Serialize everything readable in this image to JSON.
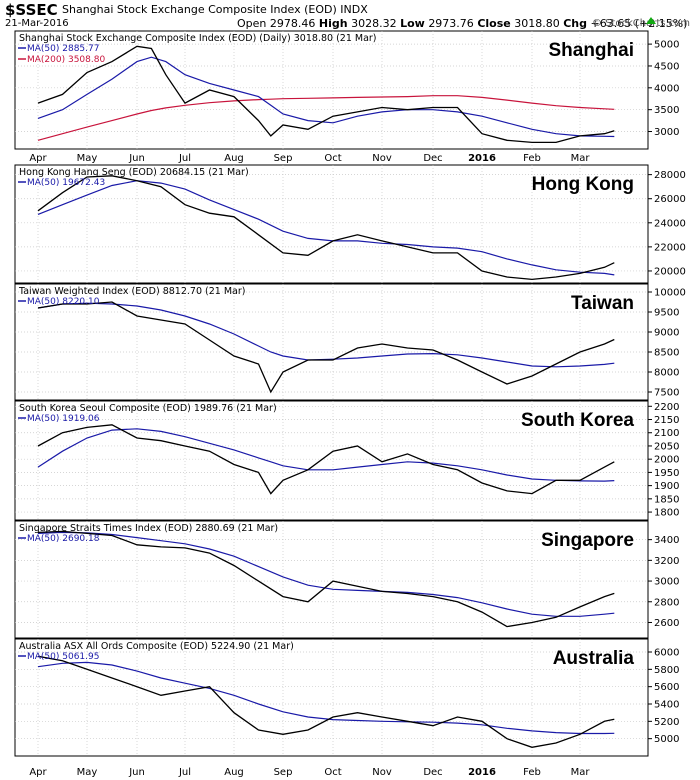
{
  "header": {
    "ticker": "$SSEC",
    "name": "Shanghai Stock Exchange Composite Index (EOD)",
    "exchange": "INDX",
    "date": "21-Mar-2016",
    "open_label": "Open",
    "open": "2978.46",
    "high_label": "High",
    "high": "3028.32",
    "low_label": "Low",
    "low": "2973.76",
    "close_label": "Close",
    "close": "3018.80",
    "chg_label": "Chg",
    "chg": "+63.65 (+2.15%)",
    "brand": "© StockCharts.com"
  },
  "x_axis": {
    "months": [
      "Apr",
      "May",
      "Jun",
      "Jul",
      "Aug",
      "Sep",
      "Oct",
      "Nov",
      "Dec",
      "2016",
      "Feb",
      "Mar"
    ],
    "bold_label": "2016"
  },
  "colors": {
    "price": "#000000",
    "ma50": "#1a1aa8",
    "ma200": "#c8143c",
    "grid": "#c8c8c8",
    "up": "#11aa11"
  },
  "chart_data": [
    {
      "type": "line",
      "title": "Shanghai Stock Exchange Composite Index (EOD) (Daily) 3018.80 (21 Mar)",
      "label": "Shanghai",
      "ylim": [
        2600,
        5300
      ],
      "yticks": [
        3000,
        3500,
        4000,
        4500,
        5000
      ],
      "legend": [
        {
          "name": "MA(50)",
          "value": "2885.77",
          "color": "#1a1aa8"
        },
        {
          "name": "MA(200)",
          "value": "3508.80",
          "color": "#c8143c"
        }
      ],
      "x_months": [
        0,
        0.5,
        1,
        1.5,
        2,
        2.3,
        2.6,
        3,
        3.5,
        4,
        4.5,
        4.75,
        5,
        5.5,
        6,
        6.5,
        7,
        7.5,
        8,
        8.5,
        9,
        9.5,
        10,
        10.5,
        11,
        11.5,
        11.7
      ],
      "price": [
        3650,
        3850,
        4350,
        4600,
        4950,
        4900,
        4300,
        3650,
        3950,
        3800,
        3250,
        2900,
        3150,
        3050,
        3350,
        3450,
        3550,
        3500,
        3550,
        3550,
        2950,
        2800,
        2750,
        2750,
        2900,
        2950,
        3019
      ],
      "ma50": [
        3300,
        3500,
        3850,
        4200,
        4600,
        4700,
        4600,
        4300,
        4100,
        3950,
        3800,
        3600,
        3400,
        3250,
        3200,
        3350,
        3450,
        3500,
        3500,
        3450,
        3350,
        3200,
        3050,
        2950,
        2900,
        2890,
        2886
      ],
      "ma200": [
        2800,
        2950,
        3100,
        3250,
        3400,
        3480,
        3540,
        3600,
        3660,
        3700,
        3730,
        3740,
        3750,
        3760,
        3770,
        3780,
        3790,
        3800,
        3820,
        3820,
        3780,
        3720,
        3650,
        3590,
        3550,
        3520,
        3509
      ]
    },
    {
      "type": "line",
      "title": "Hong Kong Hang Seng (EOD) 20684.15 (21 Mar)",
      "label": "Hong Kong",
      "ylim": [
        19000,
        28800
      ],
      "yticks": [
        20000,
        22000,
        24000,
        26000,
        28000
      ],
      "legend": [
        {
          "name": "MA(50)",
          "value": "19672.43",
          "color": "#1a1aa8"
        }
      ],
      "x_months": [
        0,
        0.5,
        1,
        1.5,
        2,
        2.5,
        3,
        3.5,
        4,
        4.5,
        5,
        5.5,
        6,
        6.5,
        7,
        7.5,
        8,
        8.5,
        9,
        9.5,
        10,
        10.5,
        11,
        11.5,
        11.7
      ],
      "price": [
        25000,
        26500,
        27800,
        27900,
        27500,
        27000,
        25500,
        24800,
        24500,
        23000,
        21500,
        21300,
        22500,
        23000,
        22500,
        22000,
        21500,
        21500,
        20000,
        19500,
        19300,
        19500,
        19800,
        20300,
        20684
      ],
      "ma50": [
        24700,
        25500,
        26300,
        27100,
        27500,
        27300,
        26800,
        25900,
        25100,
        24300,
        23300,
        22700,
        22500,
        22500,
        22300,
        22200,
        22000,
        21900,
        21600,
        21000,
        20500,
        20100,
        19900,
        19800,
        19672
      ]
    },
    {
      "type": "line",
      "title": "Taiwan Weighted Index (EOD) 8812.70 (21 Mar)",
      "label": "Taiwan",
      "ylim": [
        7300,
        10200
      ],
      "yticks": [
        7500,
        8000,
        8500,
        9000,
        9500,
        10000
      ],
      "legend": [
        {
          "name": "MA(50)",
          "value": "8220.10",
          "color": "#1a1aa8"
        }
      ],
      "x_months": [
        0,
        0.5,
        1,
        1.5,
        2,
        2.5,
        3,
        3.5,
        4,
        4.5,
        4.75,
        5,
        5.5,
        6,
        6.5,
        7,
        7.5,
        8,
        8.5,
        9,
        9.5,
        10,
        10.5,
        11,
        11.5,
        11.7
      ],
      "price": [
        9600,
        9700,
        9700,
        9750,
        9400,
        9300,
        9200,
        8800,
        8400,
        8200,
        7500,
        8000,
        8300,
        8300,
        8600,
        8700,
        8600,
        8550,
        8300,
        8000,
        7700,
        7900,
        8200,
        8500,
        8700,
        8813
      ],
      "ma50": [
        9600,
        9700,
        9720,
        9700,
        9650,
        9550,
        9400,
        9200,
        8950,
        8650,
        8500,
        8400,
        8300,
        8320,
        8350,
        8400,
        8450,
        8460,
        8430,
        8350,
        8250,
        8150,
        8130,
        8150,
        8190,
        8220
      ]
    },
    {
      "type": "line",
      "title": "South Korea Seoul Composite (EOD) 1989.76 (21 Mar)",
      "label": "South Korea",
      "ylim": [
        1770,
        2220
      ],
      "yticks": [
        1800,
        1850,
        1900,
        1950,
        2000,
        2050,
        2100,
        2150,
        2200
      ],
      "legend": [
        {
          "name": "MA(50)",
          "value": "1919.06",
          "color": "#1a1aa8"
        }
      ],
      "x_months": [
        0,
        0.5,
        1,
        1.5,
        2,
        2.5,
        3,
        3.5,
        4,
        4.5,
        4.75,
        5,
        5.5,
        6,
        6.5,
        7,
        7.5,
        8,
        8.5,
        9,
        9.5,
        10,
        10.5,
        11,
        11.5,
        11.7
      ],
      "price": [
        2050,
        2100,
        2120,
        2130,
        2080,
        2070,
        2050,
        2030,
        1980,
        1950,
        1870,
        1920,
        1960,
        2030,
        2050,
        1990,
        2020,
        1980,
        1960,
        1910,
        1880,
        1870,
        1920,
        1920,
        1970,
        1990
      ],
      "ma50": [
        1970,
        2030,
        2080,
        2110,
        2115,
        2105,
        2085,
        2060,
        2035,
        2005,
        1990,
        1975,
        1960,
        1960,
        1970,
        1980,
        1990,
        1985,
        1975,
        1960,
        1940,
        1925,
        1920,
        1918,
        1917,
        1919
      ]
    },
    {
      "type": "line",
      "title": "Singapore Straits Times Index (EOD) 2880.69 (21 Mar)",
      "label": "Singapore",
      "ylim": [
        2450,
        3580
      ],
      "yticks": [
        2600,
        2800,
        3000,
        3200,
        3400
      ],
      "legend": [
        {
          "name": "MA(50)",
          "value": "2690.18",
          "color": "#1a1aa8"
        }
      ],
      "x_months": [
        0,
        0.5,
        1,
        1.5,
        2,
        2.5,
        3,
        3.5,
        4,
        4.5,
        5,
        5.5,
        6,
        6.5,
        7,
        7.5,
        8,
        8.5,
        9,
        9.5,
        10,
        10.5,
        11,
        11.5,
        11.7
      ],
      "price": [
        3470,
        3480,
        3460,
        3440,
        3350,
        3330,
        3320,
        3270,
        3150,
        3000,
        2850,
        2800,
        3000,
        2950,
        2900,
        2880,
        2850,
        2800,
        2700,
        2560,
        2600,
        2650,
        2750,
        2850,
        2881
      ],
      "ma50": [
        3460,
        3470,
        3465,
        3450,
        3420,
        3390,
        3360,
        3310,
        3240,
        3140,
        3040,
        2960,
        2920,
        2910,
        2900,
        2890,
        2870,
        2840,
        2790,
        2730,
        2680,
        2660,
        2660,
        2680,
        2690
      ]
    },
    {
      "type": "line",
      "title": "Australia ASX All Ords Composite (EOD) 5224.90 (21 Mar)",
      "label": "Australia",
      "ylim": [
        4800,
        6150
      ],
      "yticks": [
        5000,
        5200,
        5400,
        5600,
        5800,
        6000
      ],
      "legend": [
        {
          "name": "MA(50)",
          "value": "5061.95",
          "color": "#1a1aa8"
        }
      ],
      "x_months": [
        0,
        0.5,
        1,
        1.5,
        2,
        2.5,
        3,
        3.5,
        4,
        4.5,
        5,
        5.5,
        6,
        6.5,
        7,
        7.5,
        8,
        8.5,
        9,
        9.5,
        10,
        10.5,
        11,
        11.5,
        11.7
      ],
      "price": [
        5950,
        5900,
        5800,
        5700,
        5600,
        5500,
        5550,
        5600,
        5300,
        5100,
        5050,
        5100,
        5250,
        5300,
        5250,
        5200,
        5150,
        5250,
        5200,
        5000,
        4900,
        4950,
        5050,
        5200,
        5225
      ],
      "ma50": [
        5830,
        5870,
        5880,
        5850,
        5780,
        5700,
        5640,
        5580,
        5500,
        5400,
        5310,
        5250,
        5220,
        5210,
        5200,
        5195,
        5190,
        5180,
        5160,
        5120,
        5090,
        5070,
        5060,
        5060,
        5062
      ]
    }
  ]
}
